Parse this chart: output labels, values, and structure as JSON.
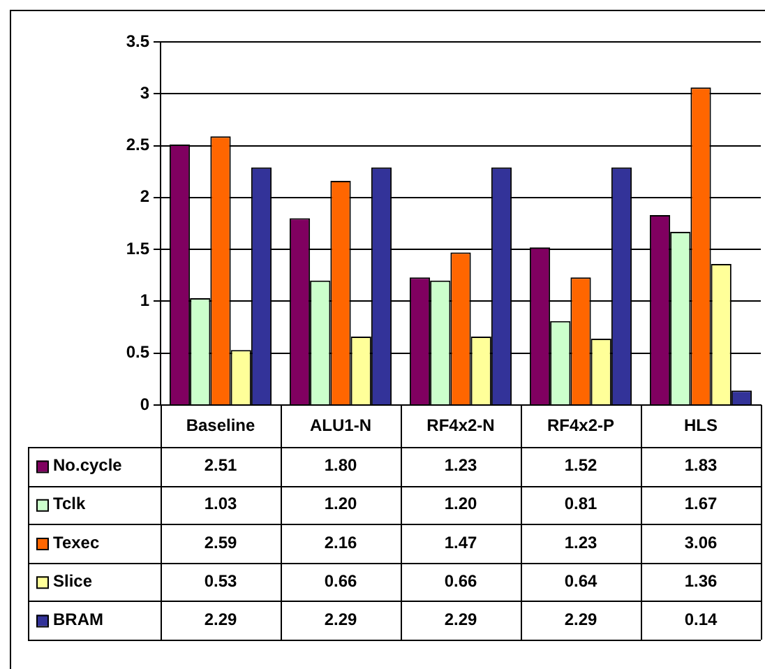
{
  "chart_data": {
    "type": "bar",
    "categories": [
      "Baseline",
      "ALU1-N",
      "RF4x2-N",
      "RF4x2-P",
      "HLS"
    ],
    "series": [
      {
        "name": "No.cycle",
        "color": "#800060",
        "values": [
          2.51,
          1.8,
          1.23,
          1.52,
          1.83
        ],
        "value_labels": [
          "2.51",
          "1.80",
          "1.23",
          "1.52",
          "1.83"
        ]
      },
      {
        "name": "Tclk",
        "color": "#ccffcc",
        "values": [
          1.03,
          1.2,
          1.2,
          0.81,
          1.67
        ],
        "value_labels": [
          "1.03",
          "1.20",
          "1.20",
          "0.81",
          "1.67"
        ]
      },
      {
        "name": "Texec",
        "color": "#ff6600",
        "values": [
          2.59,
          2.16,
          1.47,
          1.23,
          3.06
        ],
        "value_labels": [
          "2.59",
          "2.16",
          "1.47",
          "1.23",
          "3.06"
        ]
      },
      {
        "name": "Slice",
        "color": "#ffff99",
        "values": [
          0.53,
          0.66,
          0.66,
          0.64,
          1.36
        ],
        "value_labels": [
          "0.53",
          "0.66",
          "0.66",
          "0.64",
          "1.36"
        ]
      },
      {
        "name": "BRAM",
        "color": "#333399",
        "values": [
          2.29,
          2.29,
          2.29,
          2.29,
          0.14
        ],
        "value_labels": [
          "2.29",
          "2.29",
          "2.29",
          "2.29",
          "0.14"
        ]
      }
    ],
    "ylim": [
      0,
      3.5
    ],
    "yticks": [
      0,
      0.5,
      1,
      1.5,
      2,
      2.5,
      3,
      3.5
    ],
    "grid": "y",
    "legend": "bottom"
  }
}
